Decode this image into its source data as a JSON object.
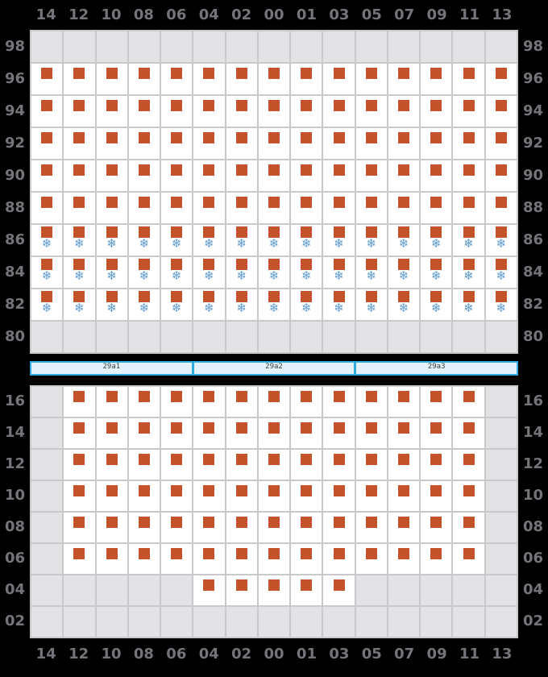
{
  "columns": [
    "14",
    "12",
    "10",
    "08",
    "06",
    "04",
    "02",
    "00",
    "01",
    "03",
    "05",
    "07",
    "09",
    "11",
    "13"
  ],
  "top_panel": {
    "row_labels": [
      "98",
      "96",
      "94",
      "92",
      "90",
      "88",
      "86",
      "84",
      "82",
      "80"
    ],
    "rows": [
      "eeeeeeeeeeeeeee",
      "sssssssssssssss",
      "sssssssssssssss",
      "sssssssssssssss",
      "sssssssssssssss",
      "sssssssssssssss",
      "aaaaaaaaaaaaaaa",
      "aaaaaaaaaaaaaaa",
      "aaaaaaaaaaaaaaa",
      "eeeeeeeeeeeeeee"
    ]
  },
  "sections": [
    {
      "label": "29a1"
    },
    {
      "label": "29a2"
    },
    {
      "label": "29a3"
    }
  ],
  "bottom_panel": {
    "row_labels": [
      "16",
      "14",
      "12",
      "10",
      "08",
      "06",
      "04",
      "02"
    ],
    "rows": [
      "essssssssssssse",
      "essssssssssssse",
      "essssssssssssse",
      "essssssssssssse",
      "essssssssssssse",
      "essssssssssssse",
      "eeeeessssseeeee",
      "eeeeeeeeeeeeeee"
    ]
  },
  "cell_types": {
    "e": "unavailable",
    "s": "available-berth",
    "a": "available-berth-with-ac"
  },
  "icons": {
    "berth": "square",
    "ac": "❄"
  },
  "colors": {
    "berth_square": "#c4532b",
    "snowflake": "#5b9bd5",
    "empty_cell": "#e3e3e5",
    "cell_background": "#ffffff",
    "grid_line": "#c9c9cb",
    "label_text": "#74757a",
    "section_fill": "#e3f2fb",
    "section_border": "#30abe2",
    "section_text": "#3c3c3c",
    "page_background": "#000000"
  }
}
